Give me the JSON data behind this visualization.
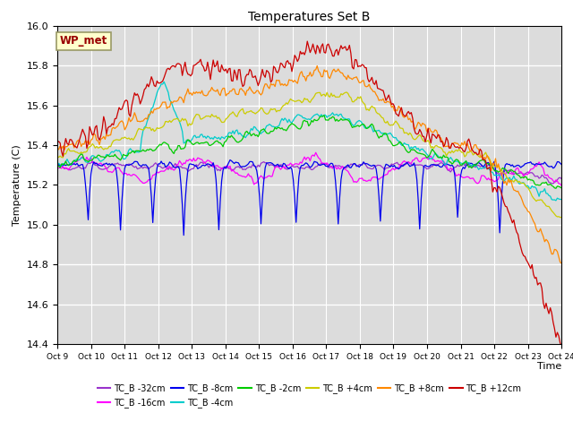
{
  "title": "Temperatures Set B",
  "xlabel": "Time",
  "ylabel": "Temperature (C)",
  "ylim": [
    14.4,
    16.0
  ],
  "xlim": [
    0,
    360
  ],
  "xtick_labels": [
    "Oct 9",
    "Oct 10",
    "Oct 11",
    "Oct 12",
    "Oct 13",
    "Oct 14",
    "Oct 15",
    "Oct 16",
    "Oct 17",
    "Oct 18",
    "Oct 19",
    "Oct 20",
    "Oct 21",
    "Oct 22",
    "Oct 23",
    "Oct 24"
  ],
  "bg_color": "#dcdcdc",
  "series": [
    {
      "name": "TC_B -32cm",
      "color": "#9933cc"
    },
    {
      "name": "TC_B -16cm",
      "color": "#ff00ff"
    },
    {
      "name": "TC_B -8cm",
      "color": "#0000ee"
    },
    {
      "name": "TC_B -4cm",
      "color": "#00cccc"
    },
    {
      "name": "TC_B -2cm",
      "color": "#00cc00"
    },
    {
      "name": "TC_B +4cm",
      "color": "#cccc00"
    },
    {
      "name": "TC_B +8cm",
      "color": "#ff8800"
    },
    {
      "name": "TC_B +12cm",
      "color": "#cc0000"
    }
  ],
  "wp_met_box_facecolor": "#ffffcc",
  "wp_met_box_edgecolor": "#999966",
  "wp_met_text_color": "#990000",
  "n_points": 360,
  "grid_color": "#ffffff"
}
